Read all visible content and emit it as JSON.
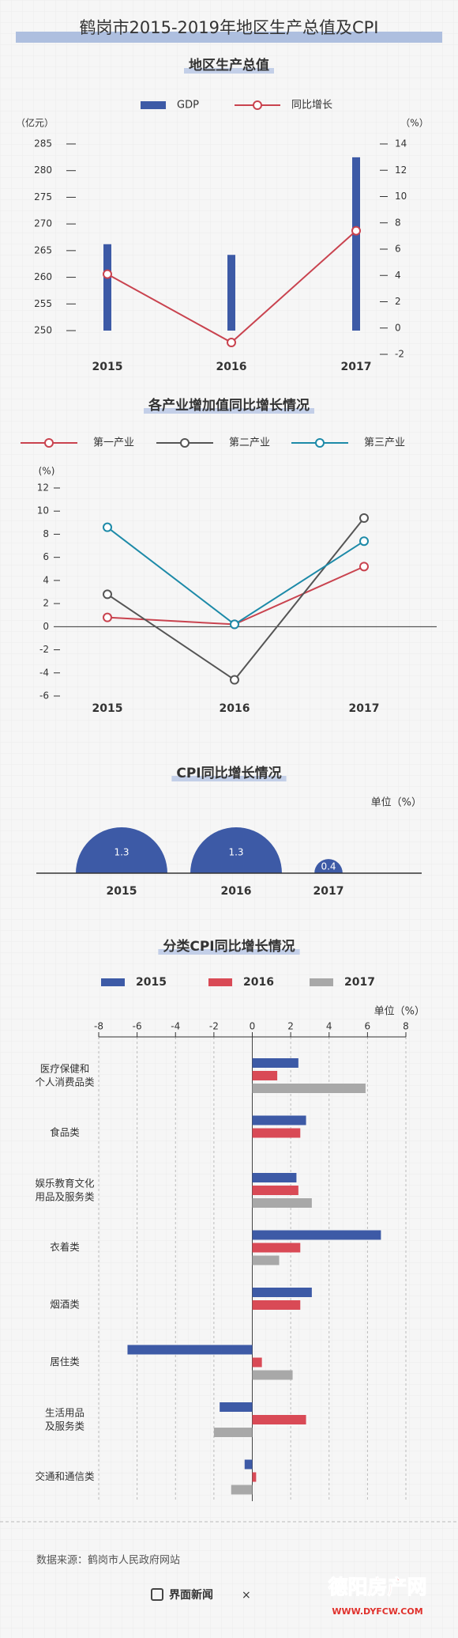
{
  "header": {
    "title": "鹤岗市2015-2019年地区生产总值及CPI"
  },
  "chart_data": [
    {
      "type": "bar-line",
      "title": "地区生产总值",
      "y_label": "（亿元）",
      "y2_label": "（%）",
      "categories": [
        "2015",
        "2016",
        "2017"
      ],
      "series": [
        {
          "name": "GDP",
          "color": "#3d5aa6",
          "values": [
            266.2,
            264.2,
            282.5
          ]
        },
        {
          "name": "同比增长",
          "color": "#c9434f",
          "axis": "y2",
          "values": [
            4.1,
            -1.1,
            7.4
          ]
        }
      ],
      "ylim": [
        250,
        285
      ],
      "yticks": [
        250,
        255,
        260,
        265,
        270,
        275,
        280,
        285
      ],
      "y2lim": [
        -2,
        14
      ],
      "y2ticks": [
        -2,
        0,
        2,
        4,
        6,
        8,
        10,
        12,
        14
      ]
    },
    {
      "type": "line",
      "title": "各产业增加值同比增长情况",
      "y_label": "(%)",
      "categories": [
        "2015",
        "2016",
        "2017"
      ],
      "series": [
        {
          "name": "第一产业",
          "color": "#c9434f",
          "values": [
            0.8,
            0.2,
            5.2
          ]
        },
        {
          "name": "第二产业",
          "color": "#555555",
          "values": [
            2.8,
            -4.6,
            9.4
          ]
        },
        {
          "name": "第三产业",
          "color": "#1d8aa8",
          "values": [
            8.6,
            0.2,
            7.4
          ]
        }
      ],
      "ylim": [
        -6,
        12
      ],
      "yticks": [
        -6,
        -4,
        -2,
        0,
        2,
        4,
        6,
        8,
        10,
        12
      ]
    },
    {
      "type": "semicircle",
      "title": "CPI同比增长情况",
      "unit_label": "单位（%）",
      "categories": [
        "2015",
        "2016",
        "2017"
      ],
      "values": [
        1.3,
        1.3,
        0.4
      ],
      "color": "#3d5aa6"
    },
    {
      "type": "hbar",
      "title": "分类CPI同比增长情况",
      "unit_label": "单位（%）",
      "categories": [
        "医疗保健和\n个人消费品类",
        "食品类",
        "娱乐教育文化\n用品及服务类",
        "衣着类",
        "烟酒类",
        "居住类",
        "生活用品\n及服务类",
        "交通和通信类"
      ],
      "series": [
        {
          "name": "2015",
          "color": "#3d5aa6",
          "values": [
            2.4,
            2.8,
            2.3,
            6.7,
            3.1,
            -6.5,
            -1.7,
            -0.4
          ]
        },
        {
          "name": "2016",
          "color": "#d94a56",
          "values": [
            1.3,
            2.5,
            2.4,
            2.5,
            2.5,
            0.5,
            2.8,
            0.2
          ]
        },
        {
          "name": "2017",
          "color": "#a8a8a8",
          "values": [
            5.9,
            null,
            3.1,
            1.4,
            null,
            2.1,
            -2.0,
            -1.1
          ]
        }
      ],
      "xlim": [
        -8,
        8
      ],
      "xticks": [
        -8,
        -6,
        -4,
        -2,
        0,
        2,
        4,
        6,
        8
      ],
      "grid": true
    }
  ],
  "footer": {
    "source": "数据来源：鹤岗市人民政府网站",
    "brand": "界面新闻",
    "separator": "×",
    "watermark": "德阳房产网",
    "watermark_url": "WWW.DYFCW.COM"
  }
}
